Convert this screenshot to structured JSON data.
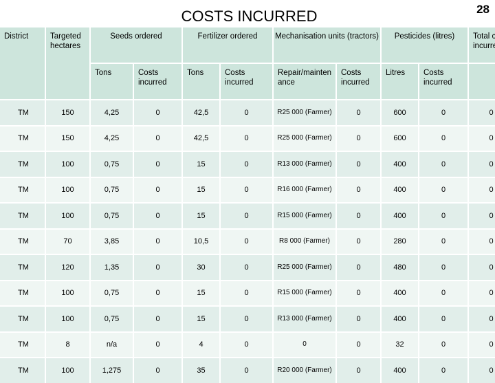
{
  "page": {
    "title": "COSTS INCURRED",
    "page_number": "28"
  },
  "headers": {
    "district": "District",
    "targeted_hectares": "Targeted hectares",
    "seeds_ordered": "Seeds ordered",
    "fertilizer_ordered": "Fertilizer ordered",
    "mechanisation": "Mechanisation units (tractors)",
    "pesticides": "Pesticides  (litres)",
    "total": "Total costs incurred",
    "seeds_tons": "Tons",
    "seeds_costs": "Costs incurred",
    "fert_tons": "Tons",
    "fert_costs": "Costs incurred",
    "mech_repair": "Repair/maintenance",
    "mech_costs": "Costs incurred",
    "pest_litres": "Litres",
    "pest_costs": "Costs incurred"
  },
  "rows": [
    {
      "district": "TM",
      "hectares": "150",
      "seeds_tons": "4,25",
      "seeds_costs": "0",
      "fert_tons": "42,5",
      "fert_costs": "0",
      "repair": "R25 000 (Farmer)",
      "mech_costs": "0",
      "litres": "600",
      "pest_costs": "0",
      "total": "0"
    },
    {
      "district": "TM",
      "hectares": "150",
      "seeds_tons": "4,25",
      "seeds_costs": "0",
      "fert_tons": "42,5",
      "fert_costs": "0",
      "repair": "R25 000 (Farmer)",
      "mech_costs": "0",
      "litres": "600",
      "pest_costs": "0",
      "total": "0"
    },
    {
      "district": "TM",
      "hectares": "100",
      "seeds_tons": "0,75",
      "seeds_costs": "0",
      "fert_tons": "15",
      "fert_costs": "0",
      "repair": "R13 000 (Farmer)",
      "mech_costs": "0",
      "litres": "400",
      "pest_costs": "0",
      "total": "0"
    },
    {
      "district": "TM",
      "hectares": "100",
      "seeds_tons": "0,75",
      "seeds_costs": "0",
      "fert_tons": "15",
      "fert_costs": "0",
      "repair": "R16 000 (Farmer)",
      "mech_costs": "0",
      "litres": "400",
      "pest_costs": "0",
      "total": "0"
    },
    {
      "district": "TM",
      "hectares": "100",
      "seeds_tons": "0,75",
      "seeds_costs": "0",
      "fert_tons": "15",
      "fert_costs": "0",
      "repair": "R15 000 (Farmer)",
      "mech_costs": "0",
      "litres": "400",
      "pest_costs": "0",
      "total": "0"
    },
    {
      "district": "TM",
      "hectares": "70",
      "seeds_tons": "3,85",
      "seeds_costs": "0",
      "fert_tons": "10,5",
      "fert_costs": "0",
      "repair": "R8 000 (Farmer)",
      "mech_costs": "0",
      "litres": "280",
      "pest_costs": "0",
      "total": "0"
    },
    {
      "district": "TM",
      "hectares": "120",
      "seeds_tons": "1,35",
      "seeds_costs": "0",
      "fert_tons": "30",
      "fert_costs": "0",
      "repair": "R25 000 (Farmer)",
      "mech_costs": "0",
      "litres": "480",
      "pest_costs": "0",
      "total": "0"
    },
    {
      "district": "TM",
      "hectares": "100",
      "seeds_tons": "0,75",
      "seeds_costs": "0",
      "fert_tons": "15",
      "fert_costs": "0",
      "repair": "R15 000 (Farmer)",
      "mech_costs": "0",
      "litres": "400",
      "pest_costs": "0",
      "total": "0"
    },
    {
      "district": "TM",
      "hectares": "100",
      "seeds_tons": "0,75",
      "seeds_costs": "0",
      "fert_tons": "15",
      "fert_costs": "0",
      "repair": "R13 000 (Farmer)",
      "mech_costs": "0",
      "litres": "400",
      "pest_costs": "0",
      "total": "0"
    },
    {
      "district": "TM",
      "hectares": "8",
      "seeds_tons": "n/a",
      "seeds_costs": "0",
      "fert_tons": "4",
      "fert_costs": "0",
      "repair": "0",
      "mech_costs": "0",
      "litres": "32",
      "pest_costs": "0",
      "total": "0"
    },
    {
      "district": "TM",
      "hectares": "100",
      "seeds_tons": "1,275",
      "seeds_costs": "0",
      "fert_tons": "35",
      "fert_costs": "0",
      "repair": "R20 000 (Farmer)",
      "mech_costs": "0",
      "litres": "400",
      "pest_costs": "0",
      "total": "0"
    }
  ],
  "colors": {
    "header_bg": "#cde5dc",
    "row_odd_bg": "#e1eeea",
    "row_even_bg": "#eff6f3"
  }
}
